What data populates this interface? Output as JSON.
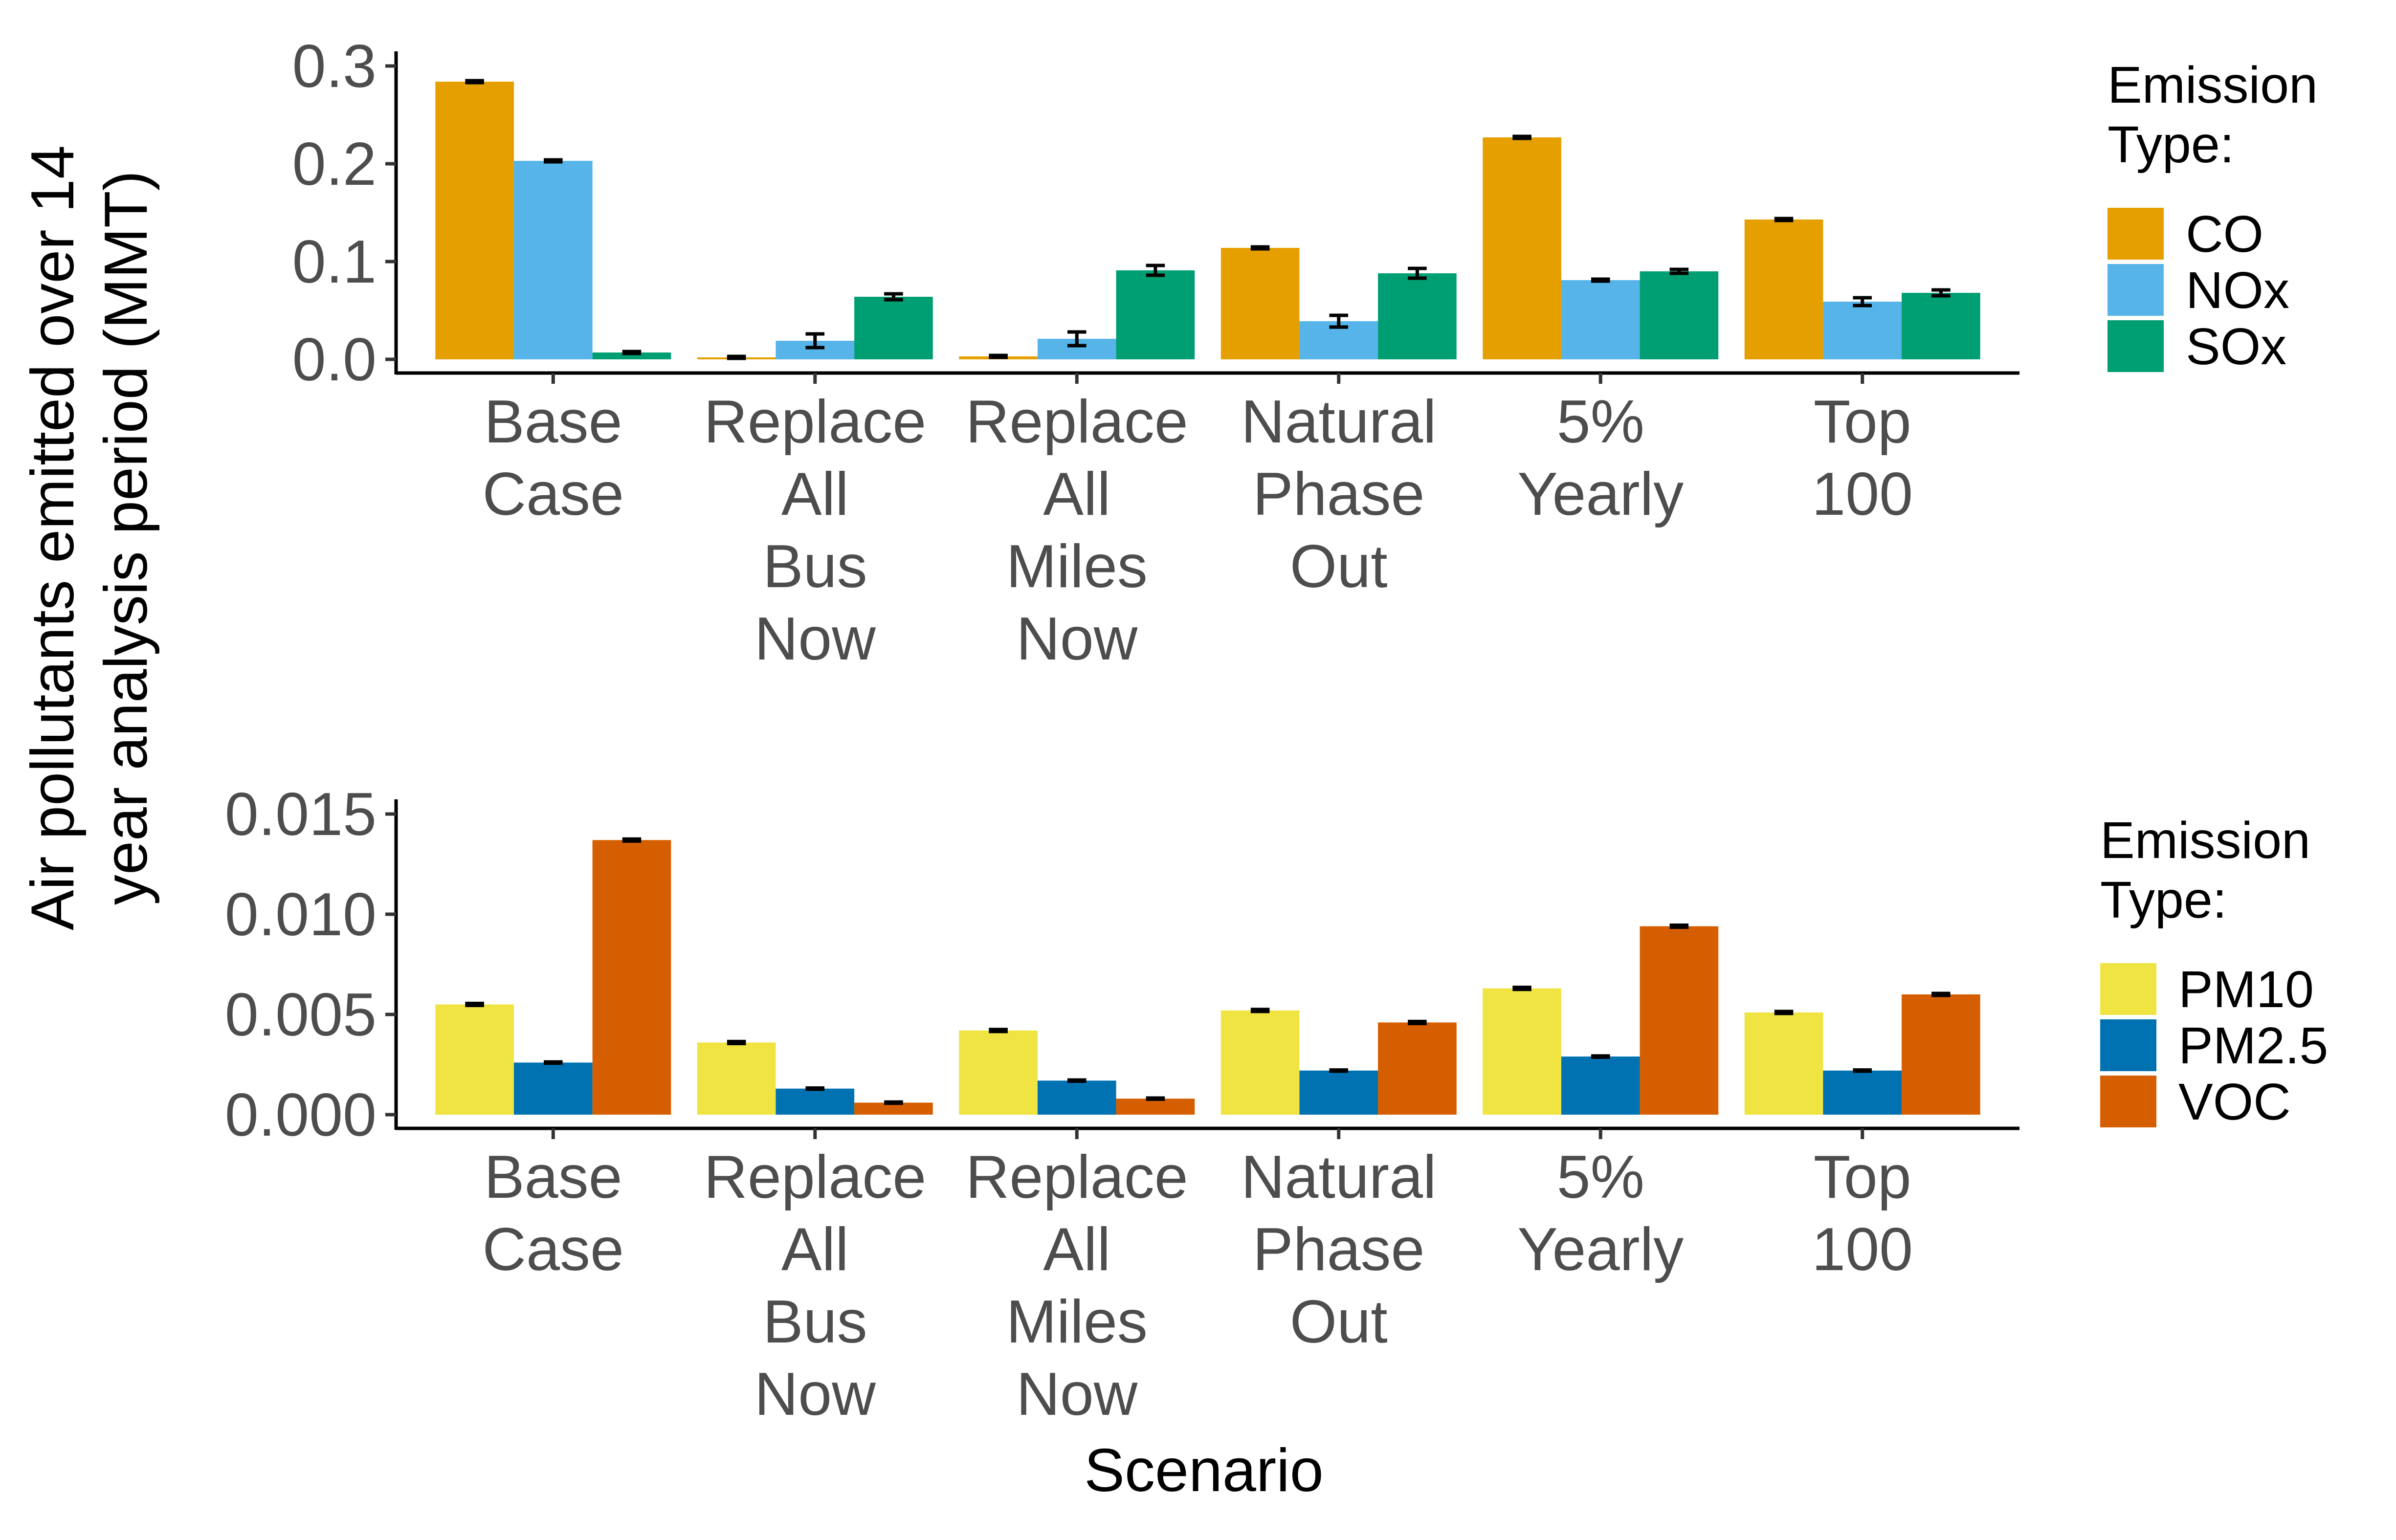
{
  "colors": {
    "CO": "#E69F00",
    "NOx": "#56B4E9",
    "SOx": "#009E73",
    "PM10": "#F0E442",
    "PM2.5": "#0072B2",
    "VOC": "#D55E00"
  },
  "ylabel_lines": [
    "Air pollutants emitted over 14",
    "year analysis period (MMT)"
  ],
  "xlabel": "Scenario",
  "chart_data": [
    {
      "type": "bar",
      "categories": [
        "Base Case",
        "Replace All Bus Now",
        "Replace All Miles Now",
        "Natural Phase Out",
        "5% Yearly",
        "Top 100"
      ],
      "category_lines": [
        [
          "Base",
          "Case"
        ],
        [
          "Replace",
          "All",
          "Bus",
          "Now"
        ],
        [
          "Replace",
          "All",
          "Miles",
          "Now"
        ],
        [
          "Natural",
          "Phase",
          "Out"
        ],
        [
          "5%",
          "Yearly"
        ],
        [
          "Top",
          "100"
        ]
      ],
      "series": [
        {
          "name": "CO",
          "values": [
            0.284,
            0.002,
            0.003,
            0.114,
            0.227,
            0.143
          ],
          "error": [
            0.001,
            0.001,
            0.001,
            0.001,
            0.001,
            0.001
          ]
        },
        {
          "name": "NOx",
          "values": [
            0.203,
            0.019,
            0.021,
            0.039,
            0.081,
            0.059
          ],
          "error": [
            0.001,
            0.007,
            0.007,
            0.006,
            0.001,
            0.004
          ]
        },
        {
          "name": "SOx",
          "values": [
            0.007,
            0.064,
            0.091,
            0.088,
            0.09,
            0.068
          ],
          "error": [
            0.001,
            0.003,
            0.005,
            0.005,
            0.002,
            0.003
          ]
        }
      ],
      "xlabel": "",
      "ylim": [
        0,
        0.3
      ],
      "yticks": [
        0.0,
        0.1,
        0.2,
        0.3
      ],
      "ytick_labels": [
        "0.0",
        "0.1",
        "0.2",
        "0.3"
      ],
      "legend_title_lines": [
        "Emission",
        "Type:"
      ],
      "legend_position": "right",
      "grid": false
    },
    {
      "type": "bar",
      "categories": [
        "Base Case",
        "Replace All Bus Now",
        "Replace All Miles Now",
        "Natural Phase Out",
        "5% Yearly",
        "Top 100"
      ],
      "category_lines": [
        [
          "Base",
          "Case"
        ],
        [
          "Replace",
          "All",
          "Bus",
          "Now"
        ],
        [
          "Replace",
          "All",
          "Miles",
          "Now"
        ],
        [
          "Natural",
          "Phase",
          "Out"
        ],
        [
          "5%",
          "Yearly"
        ],
        [
          "Top",
          "100"
        ]
      ],
      "series": [
        {
          "name": "PM10",
          "values": [
            0.0055,
            0.0036,
            0.0042,
            0.0052,
            0.0063,
            0.0051
          ],
          "error": [
            5e-05,
            5e-05,
            5e-05,
            5e-05,
            5e-05,
            5e-05
          ]
        },
        {
          "name": "PM2.5",
          "values": [
            0.0026,
            0.0013,
            0.0017,
            0.0022,
            0.0029,
            0.0022
          ],
          "error": [
            3e-05,
            3e-05,
            3e-05,
            3e-05,
            3e-05,
            3e-05
          ]
        },
        {
          "name": "VOC",
          "values": [
            0.0137,
            0.0006,
            0.0008,
            0.0046,
            0.0094,
            0.006
          ],
          "error": [
            5e-05,
            3e-05,
            3e-05,
            5e-05,
            5e-05,
            5e-05
          ]
        }
      ],
      "xlabel": "Scenario",
      "ylim": [
        0,
        0.015
      ],
      "yticks": [
        0.0,
        0.005,
        0.01,
        0.015
      ],
      "ytick_labels": [
        "0.000",
        "0.005",
        "0.010",
        "0.015"
      ],
      "legend_title_lines": [
        "Emission",
        "Type:"
      ],
      "legend_position": "right",
      "grid": false
    }
  ]
}
